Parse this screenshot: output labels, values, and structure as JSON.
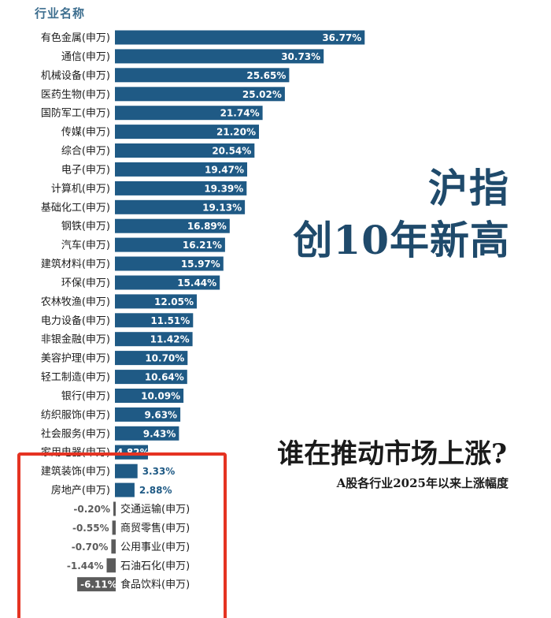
{
  "header": {
    "column_label": "行业名称"
  },
  "titles": {
    "main_line1": "沪指",
    "main_line2": "创10年新高",
    "question": "谁在推动市场上涨?",
    "subtitle": "A股各行业2025年以来上涨幅度"
  },
  "colors": {
    "positive_bar": "#1f5a85",
    "negative_bar": "#5b5b5b",
    "highlight_box": "#e53322",
    "title_text": "#1f4a6b"
  },
  "chart_data": {
    "type": "bar",
    "orientation": "horizontal",
    "value_unit": "%",
    "categories": [
      "有色金属(申万)",
      "通信(申万)",
      "机械设备(申万)",
      "医药生物(申万)",
      "国防军工(申万)",
      "传媒(申万)",
      "综合(申万)",
      "电子(申万)",
      "计算机(申万)",
      "基础化工(申万)",
      "钢铁(申万)",
      "汽车(申万)",
      "建筑材料(申万)",
      "环保(申万)",
      "农林牧渔(申万)",
      "电力设备(申万)",
      "非银金融(申万)",
      "美容护理(申万)",
      "轻工制造(申万)",
      "银行(申万)",
      "纺织服饰(申万)",
      "社会服务(申万)",
      "家用电器(申万)",
      "建筑装饰(申万)",
      "房地产(申万)",
      "交通运输(申万)",
      "商贸零售(申万)",
      "公用事业(申万)",
      "石油石化(申万)",
      "食品饮料(申万)"
    ],
    "values": [
      36.77,
      30.73,
      25.65,
      25.02,
      21.74,
      21.2,
      20.54,
      19.47,
      19.39,
      19.13,
      16.89,
      16.21,
      15.97,
      15.44,
      12.05,
      11.51,
      11.42,
      10.7,
      10.64,
      10.09,
      9.63,
      9.43,
      4.82,
      3.33,
      2.88,
      -0.2,
      -0.55,
      -0.7,
      -1.44,
      -6.11
    ],
    "value_labels": [
      "36.77%",
      "30.73%",
      "25.65%",
      "25.02%",
      "21.74%",
      "21.20%",
      "20.54%",
      "19.47%",
      "19.39%",
      "19.13%",
      "16.89%",
      "16.21%",
      "15.97%",
      "15.44%",
      "12.05%",
      "11.51%",
      "11.42%",
      "10.70%",
      "10.64%",
      "10.09%",
      "9.63%",
      "9.43%",
      "4.82%",
      "3.33%",
      "2.88%",
      "-0.20%",
      "-0.55%",
      "-0.70%",
      "-1.44%",
      "-6.11%"
    ],
    "highlighted_categories": [
      "家用电器(申万)",
      "建筑装饰(申万)",
      "房地产(申万)",
      "交通运输(申万)",
      "商贸零售(申万)",
      "公用事业(申万)",
      "石油石化(申万)",
      "食品饮料(申万)"
    ],
    "grid": false,
    "legend": "none"
  }
}
